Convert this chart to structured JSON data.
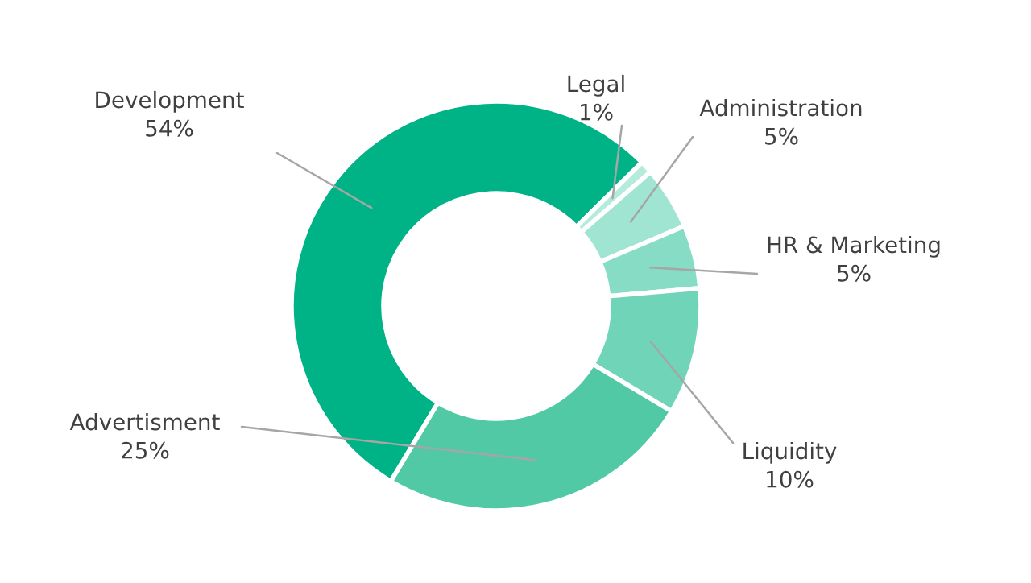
{
  "chart_data": {
    "type": "donut",
    "categories": [
      "Development",
      "Legal",
      "Administration",
      "HR & Marketing",
      "Liquidity",
      "Advertisment"
    ],
    "values": [
      54,
      1,
      5,
      5,
      10,
      25
    ],
    "value_labels": [
      "54%",
      "1%",
      "5%",
      "5%",
      "10%",
      "25%"
    ],
    "colors": [
      "#00b386",
      "#b5ebdc",
      "#a0e4d2",
      "#86dcc4",
      "#6fd4b8",
      "#52c9a5"
    ],
    "legend": false
  }
}
